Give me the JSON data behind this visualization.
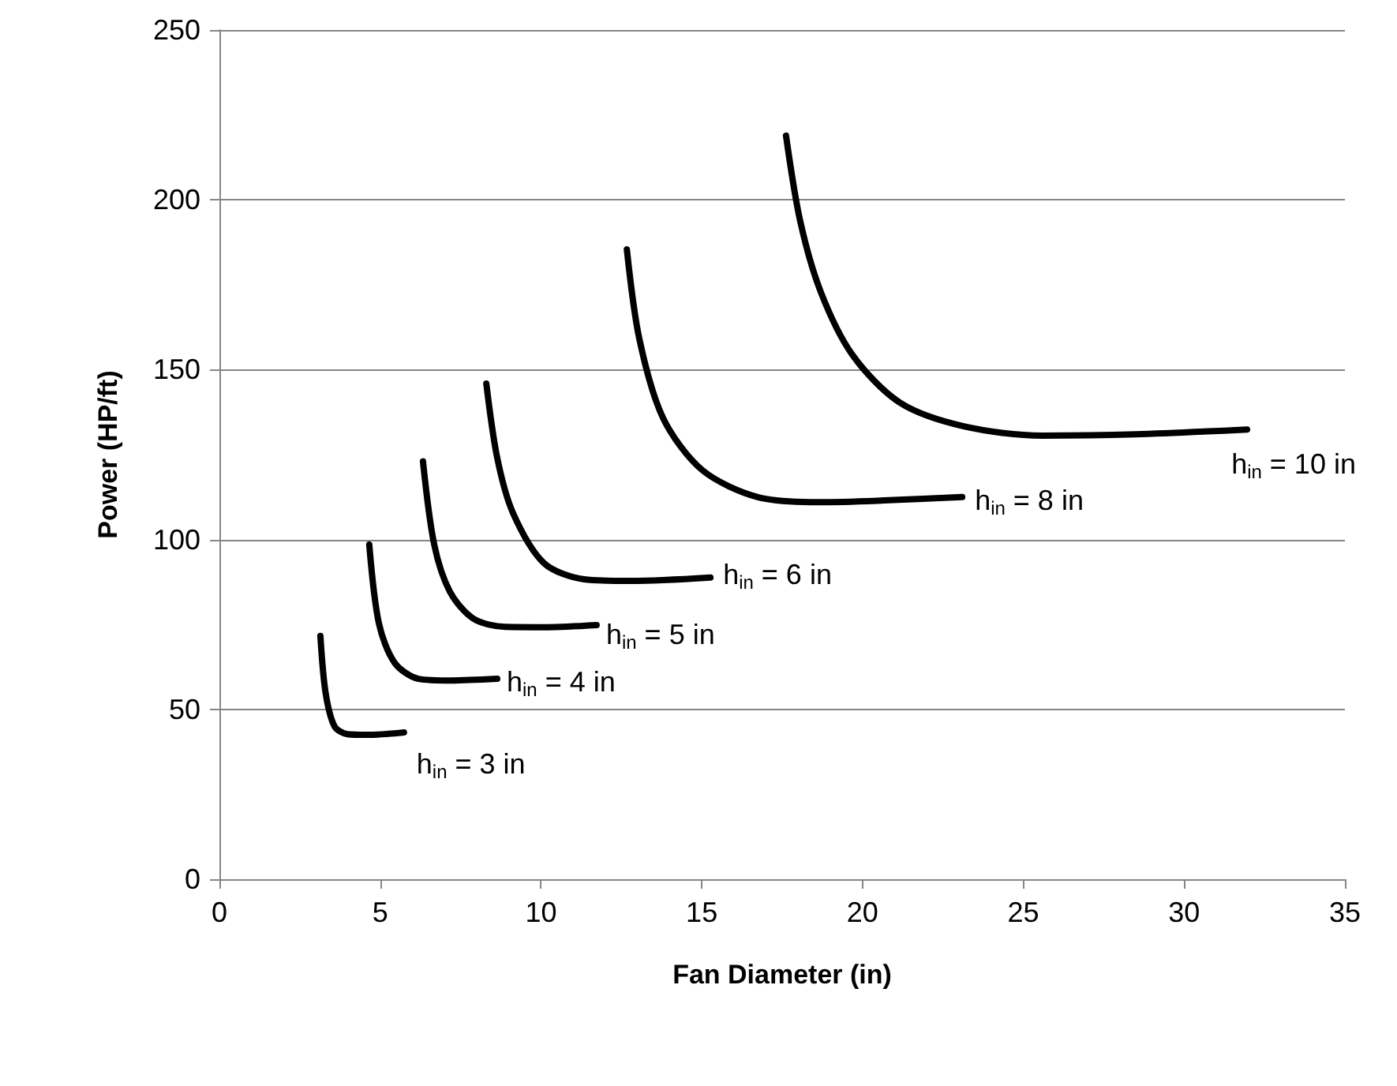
{
  "chart_data": {
    "type": "line",
    "xlabel": "Fan Diameter (in)",
    "ylabel": "Power (HP/ft)",
    "xlim": [
      0,
      35
    ],
    "xticks": [
      0,
      5,
      10,
      15,
      20,
      25,
      30,
      35
    ],
    "ylim": [
      0,
      250
    ],
    "yticks": [
      0,
      50,
      100,
      150,
      200,
      250
    ],
    "grid": "y",
    "marker": "none",
    "line_style": "solid",
    "series": [
      {
        "color": "#000000",
        "x": [
          3.14,
          3.3,
          3.58,
          3.98,
          4.6,
          5.74
        ],
        "values": [
          71.6,
          55,
          45,
          42.7,
          42.5,
          43.2
        ]
      },
      {
        "color": "#000000",
        "x": [
          4.66,
          4.96,
          5.45,
          6.19,
          7.2,
          8.64
        ],
        "values": [
          98.5,
          75.3,
          63.7,
          59,
          58.5,
          59
        ]
      },
      {
        "color": "#000000",
        "x": [
          6.33,
          6.68,
          7.17,
          7.9,
          8.89,
          10.2,
          11.73
        ],
        "values": [
          123,
          98.5,
          84.6,
          76.7,
          74.3,
          74.2,
          74.8
        ]
      },
      {
        "color": "#000000",
        "x": [
          8.3,
          8.64,
          9.13,
          10.1,
          11.34,
          12.81,
          15.27
        ],
        "values": [
          145.9,
          124,
          107.8,
          93,
          88.3,
          87.8,
          88.8
        ]
      },
      {
        "color": "#000000",
        "x": [
          12.67,
          13.06,
          13.8,
          15.02,
          16.74,
          18.7,
          20.67,
          23.1
        ],
        "values": [
          185.4,
          159,
          135.7,
          120.4,
          112.5,
          111,
          111.5,
          112.5
        ]
      },
      {
        "color": "#000000",
        "x": [
          17.62,
          18.06,
          18.7,
          19.69,
          21.16,
          23.12,
          25.58,
          28.5,
          31.96
        ],
        "values": [
          218.9,
          193.8,
          172.9,
          154.3,
          140.3,
          133.4,
          130.6,
          131,
          132.4
        ]
      }
    ],
    "annotations": [
      "h$_{in}$ = 3 in",
      "h$_{in}$ = 4 in",
      "h$_{in}$ = 5 in",
      "h$_{in}$ = 6 in",
      "h$_{in}$ = 8 in",
      "h$_{in}$ = 10 in"
    ]
  }
}
